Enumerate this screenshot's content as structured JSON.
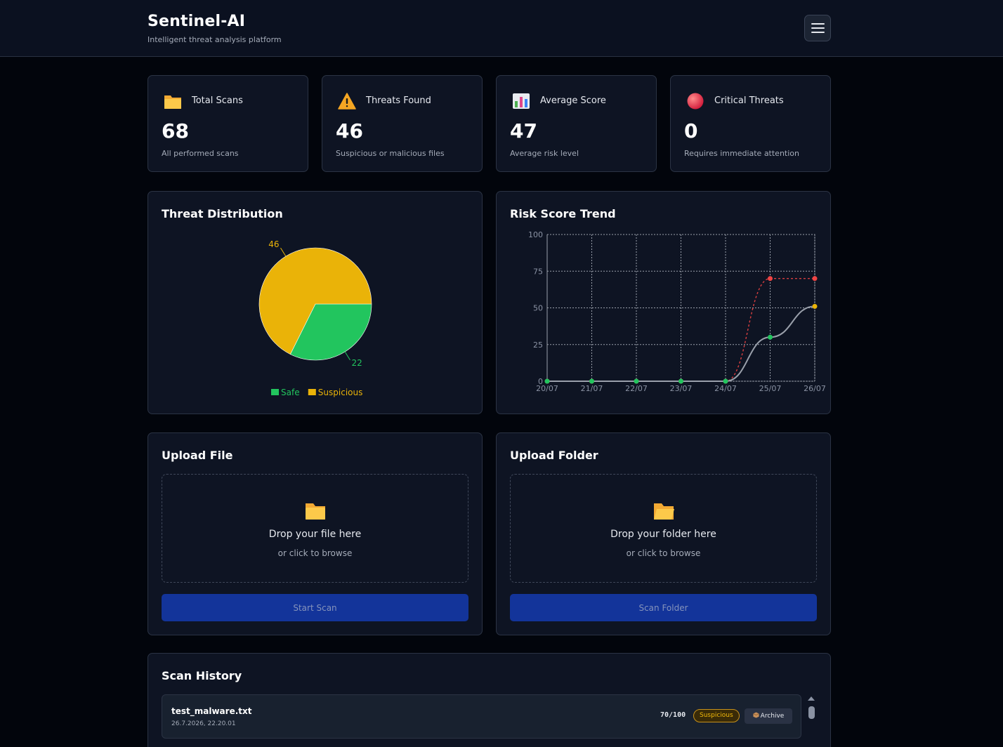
{
  "app": {
    "title": "Sentinel-AI",
    "subtitle": "Intelligent threat analysis platform"
  },
  "stats": [
    {
      "icon": "folder-icon",
      "label": "Total Scans",
      "value": "68",
      "desc": "All performed scans"
    },
    {
      "icon": "warning-icon",
      "label": "Threats Found",
      "value": "46",
      "desc": "Suspicious or malicious files"
    },
    {
      "icon": "bar-chart-icon",
      "label": "Average Score",
      "value": "47",
      "desc": "Average risk level"
    },
    {
      "icon": "red-circle-icon",
      "label": "Critical Threats",
      "value": "0",
      "desc": "Requires immediate attention"
    }
  ],
  "distribution": {
    "title": "Threat Distribution"
  },
  "trend": {
    "title": "Risk Score Trend"
  },
  "upload_file": {
    "title": "Upload File",
    "drop_text": "Drop your file here",
    "browse_text": "or click to browse",
    "button": "Start Scan"
  },
  "upload_folder": {
    "title": "Upload Folder",
    "drop_text": "Drop your folder here",
    "browse_text": "or click to browse",
    "button": "Scan Folder"
  },
  "history": {
    "title": "Scan History",
    "rows": [
      {
        "file": "test_malware.txt",
        "date": "26.7.2026, 22.20.01",
        "score": "70/100",
        "status": "Suspicious",
        "action": "Archive"
      }
    ]
  },
  "colors": {
    "safe": "#22c55e",
    "suspicious": "#eab308",
    "critical": "#ef4444",
    "accent": "#13349a"
  },
  "chart_data": [
    {
      "type": "pie",
      "title": "Threat Distribution",
      "categories": [
        "Safe",
        "Suspicious"
      ],
      "values": [
        22,
        46
      ],
      "colors": [
        "#22c55e",
        "#eab308"
      ],
      "legend": "bottom"
    },
    {
      "type": "line",
      "title": "Risk Score Trend",
      "x": [
        "20/07",
        "21/07",
        "22/07",
        "23/07",
        "24/07",
        "25/07",
        "26/07"
      ],
      "ylim": [
        0,
        100
      ],
      "yticks": [
        0,
        25,
        50,
        75,
        100
      ],
      "grid": true,
      "series": [
        {
          "values": [
            0,
            0,
            0,
            0,
            0,
            70,
            70
          ],
          "color": "#ef4444",
          "dash": true
        },
        {
          "values": [
            0,
            0,
            0,
            0,
            0,
            30,
            51
          ],
          "color": "#9aa0ab",
          "dash": false,
          "point_colors": [
            "#22c55e",
            "#22c55e",
            "#22c55e",
            "#22c55e",
            "#22c55e",
            "#22c55e",
            "#eab308"
          ]
        }
      ]
    }
  ]
}
